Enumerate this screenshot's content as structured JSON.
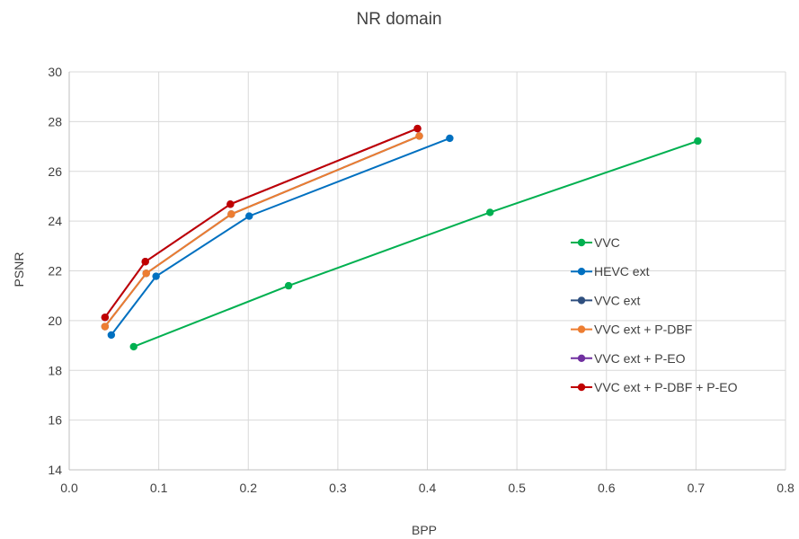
{
  "chart_data": {
    "type": "line",
    "title": "NR domain",
    "xlabel": "BPP",
    "ylabel": "PSNR",
    "xlim": [
      0.0,
      0.8
    ],
    "ylim": [
      14,
      30
    ],
    "x_ticks": [
      "0.0",
      "0.1",
      "0.2",
      "0.3",
      "0.4",
      "0.5",
      "0.6",
      "0.7",
      "0.8"
    ],
    "y_ticks": [
      "14",
      "16",
      "18",
      "20",
      "22",
      "24",
      "26",
      "28",
      "30"
    ],
    "grid": true,
    "legend_position": "right",
    "series": [
      {
        "name": "VVC",
        "color": "#00b050",
        "points": [
          [
            0.072,
            18.95
          ],
          [
            0.245,
            21.4
          ],
          [
            0.47,
            24.35
          ],
          [
            0.702,
            27.22
          ]
        ]
      },
      {
        "name": "HEVC ext",
        "color": "#0070c0",
        "points": [
          [
            0.047,
            19.42
          ],
          [
            0.097,
            21.78
          ],
          [
            0.201,
            24.2
          ],
          [
            0.425,
            27.33
          ]
        ]
      },
      {
        "name": "VVC ext",
        "color": "#2f4f7f",
        "points": [
          [
            0.04,
            19.76
          ],
          [
            0.086,
            21.9
          ],
          [
            0.181,
            24.28
          ],
          [
            0.391,
            27.42
          ]
        ]
      },
      {
        "name": "VVC ext + P-DBF",
        "color": "#ed7d31",
        "points": [
          [
            0.04,
            19.76
          ],
          [
            0.086,
            21.9
          ],
          [
            0.181,
            24.28
          ],
          [
            0.391,
            27.42
          ]
        ]
      },
      {
        "name": "VVC ext + P-EO",
        "color": "#7030a0",
        "points": [
          [
            0.04,
            20.13
          ],
          [
            0.085,
            22.37
          ],
          [
            0.18,
            24.68
          ],
          [
            0.389,
            27.72
          ]
        ]
      },
      {
        "name": "VVC ext + P-DBF + P-EO",
        "color": "#c00000",
        "points": [
          [
            0.04,
            20.13
          ],
          [
            0.085,
            22.37
          ],
          [
            0.18,
            24.68
          ],
          [
            0.389,
            27.72
          ]
        ]
      }
    ]
  }
}
